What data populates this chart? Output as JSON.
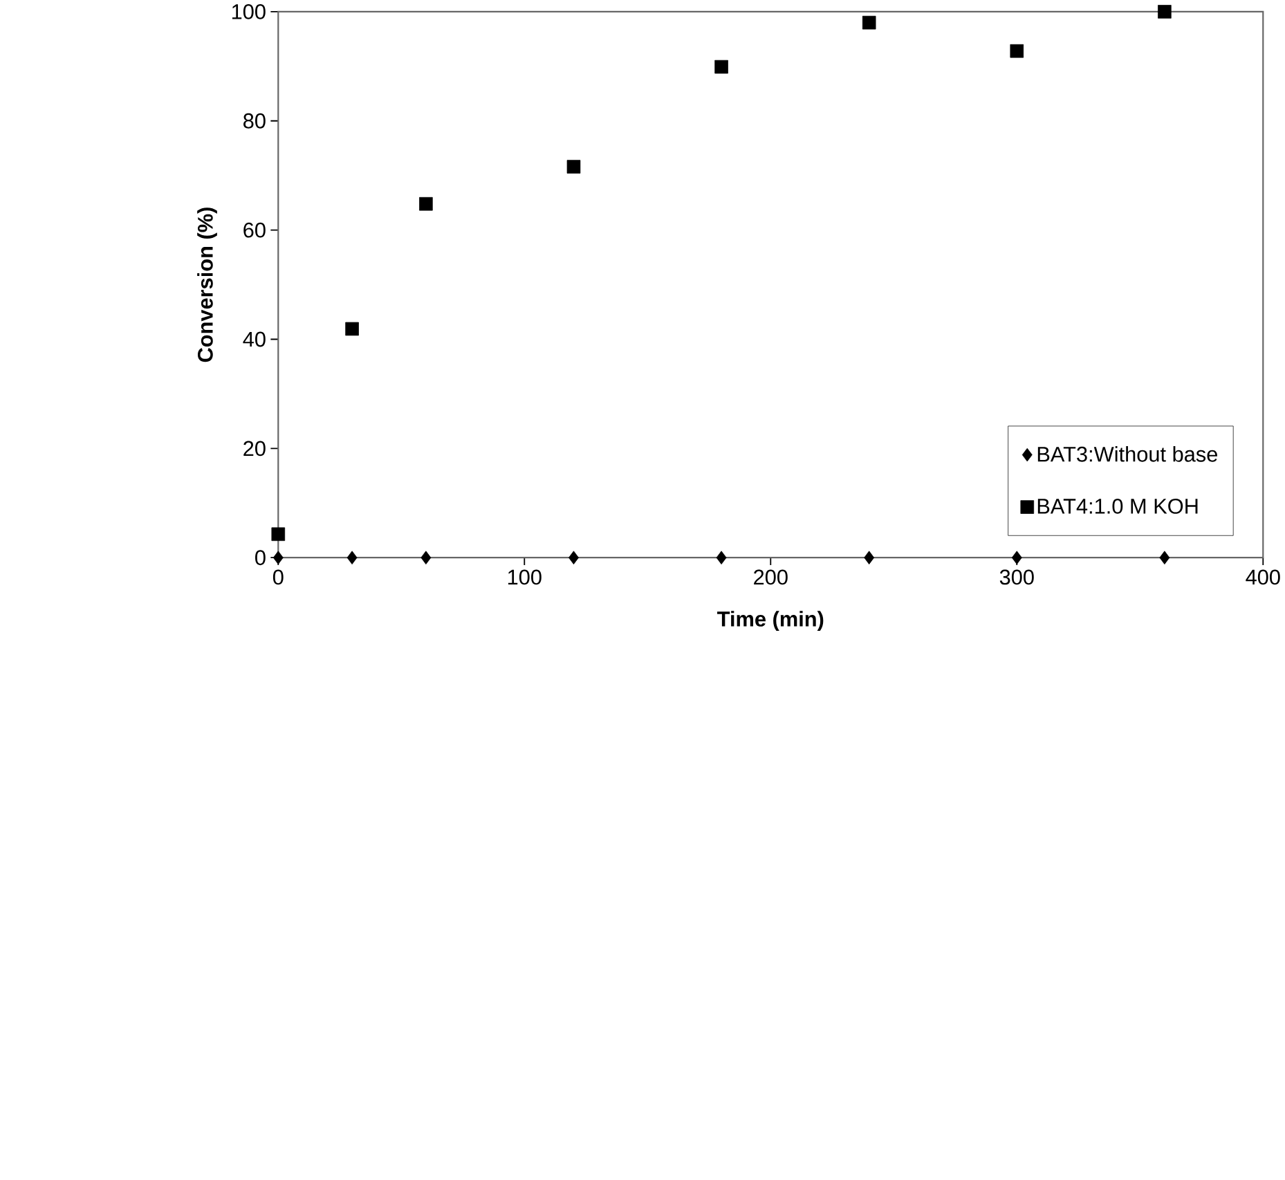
{
  "chart_data": {
    "type": "scatter",
    "xlabel": "Time (min)",
    "ylabel": "Conversion (%)",
    "xlim": [
      0,
      400
    ],
    "xticks": [
      0,
      100,
      200,
      300,
      400
    ],
    "ylim": [
      0,
      100
    ],
    "yticks": [
      0,
      20,
      40,
      60,
      80,
      100
    ],
    "grid": false,
    "legend": "bottom right",
    "series": [
      {
        "name": "BAT3:Without base",
        "color": "#000000",
        "marker": "diamond",
        "x": [
          0,
          30,
          60,
          120,
          180,
          240,
          300,
          360
        ],
        "values": [
          0,
          0,
          0,
          0,
          0,
          0,
          0,
          0
        ]
      },
      {
        "name": "BAT4:1.0 M KOH",
        "color": "#000000",
        "marker": "square",
        "x": [
          0,
          30,
          60,
          120,
          180,
          240,
          300,
          360
        ],
        "values": [
          4.3,
          41.9,
          64.8,
          71.6,
          89.9,
          98.0,
          92.8,
          100
        ]
      }
    ]
  }
}
